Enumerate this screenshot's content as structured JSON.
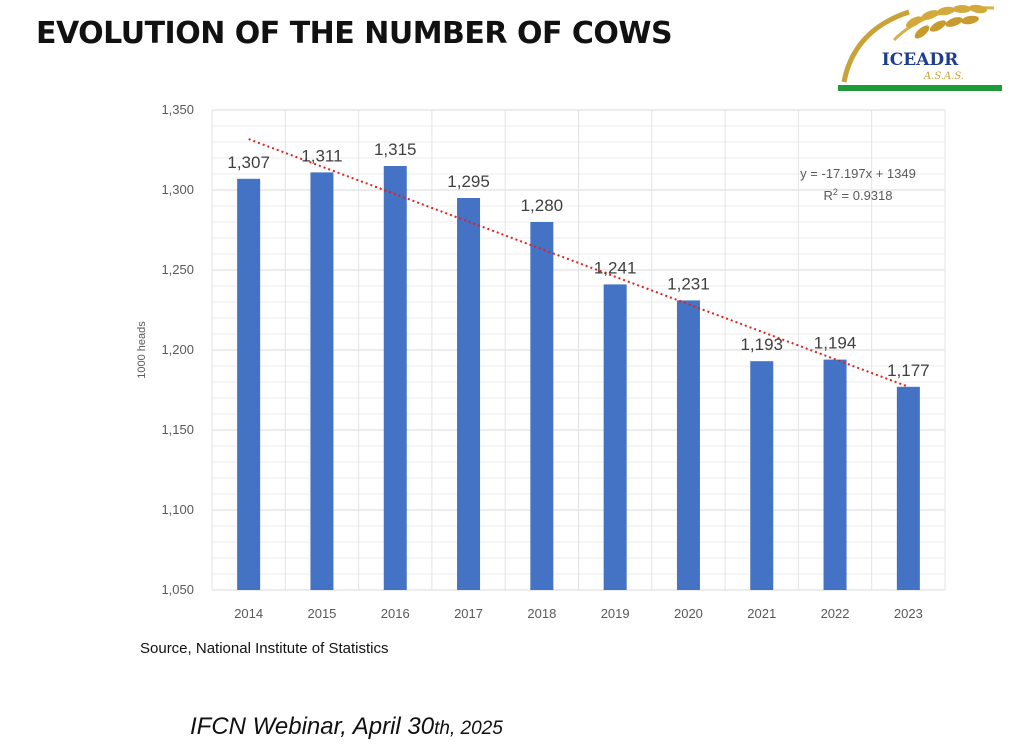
{
  "slide": {
    "title": "EVOLUTION OF THE NUMBER OF COWS",
    "source": "Source, National Institute of Statistics",
    "footer_main": "IFCN Webinar, April 30",
    "footer_suffix": "th, 2025"
  },
  "logo": {
    "text": "ICEADR",
    "subtext": "A.S.A.S.",
    "colors": {
      "text": "#1f3d8c",
      "green": "#1f9b3a",
      "gold": "#c9a23a"
    },
    "icon": "wheat-ear-icon"
  },
  "chart_data": {
    "type": "bar",
    "categories": [
      "2014",
      "2015",
      "2016",
      "2017",
      "2018",
      "2019",
      "2020",
      "2021",
      "2022",
      "2023"
    ],
    "values": [
      1307,
      1311,
      1315,
      1295,
      1280,
      1241,
      1231,
      1193,
      1194,
      1177
    ],
    "data_labels": [
      "1,307",
      "1,311",
      "1,315",
      "1,295",
      "1,280",
      "1,241",
      "1,231",
      "1,193",
      "1,194",
      "1,177"
    ],
    "ylabel": "1000 heads",
    "ylim": [
      1050,
      1350
    ],
    "yticks": [
      1050,
      1100,
      1150,
      1200,
      1250,
      1300,
      1350
    ],
    "ytick_labels": [
      "1,050",
      "1,100",
      "1,150",
      "1,200",
      "1,250",
      "1,300",
      "1,350"
    ],
    "grid": true,
    "bar_color": "#4472c4",
    "trendline": {
      "type": "linear",
      "slope": -17.197,
      "intercept": 1349,
      "color": "#e0211d",
      "equation": "y = -17.197x + 1349",
      "r_squared_prefix": "R",
      "r_squared_exp": "2",
      "r_squared_value": " = 0.9318"
    }
  }
}
